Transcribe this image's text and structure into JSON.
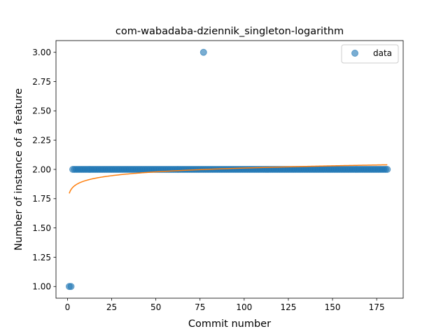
{
  "chart_data": {
    "type": "scatter",
    "title": "com-wabadaba-dziennik_singleton-logarithm",
    "xlabel": "Commit number",
    "ylabel": "Number of instance of a feature",
    "xlim": [
      -6.5,
      190
    ],
    "ylim": [
      0.9,
      3.1
    ],
    "xticks": [
      0,
      25,
      50,
      75,
      100,
      125,
      150,
      175
    ],
    "yticks": [
      1.0,
      1.25,
      1.5,
      1.75,
      2.0,
      2.25,
      2.5,
      2.75,
      3.0
    ],
    "xtick_labels": [
      "0",
      "25",
      "50",
      "75",
      "100",
      "125",
      "150",
      "175"
    ],
    "ytick_labels": [
      "1.00",
      "1.25",
      "1.50",
      "1.75",
      "2.00",
      "2.25",
      "2.50",
      "2.75",
      "3.00"
    ],
    "legend": {
      "position": "top-right",
      "entries": [
        "data"
      ]
    },
    "grid": false,
    "series": [
      {
        "name": "data",
        "kind": "scatter",
        "color": "#1f77b4",
        "points": {
          "low": {
            "x": [
              1,
              2
            ],
            "y": [
              1,
              1
            ]
          },
          "constant": {
            "x_start": 3,
            "x_end": 181,
            "y": 2
          },
          "outlier": {
            "x": [
              77
            ],
            "y": [
              3
            ]
          }
        }
      },
      {
        "kind": "line",
        "color": "#ff7f0e",
        "fit": {
          "form": "a + b*ln(x)",
          "a": 1.795,
          "b": 0.047,
          "x_start": 1,
          "x_end": 181
        }
      }
    ]
  }
}
